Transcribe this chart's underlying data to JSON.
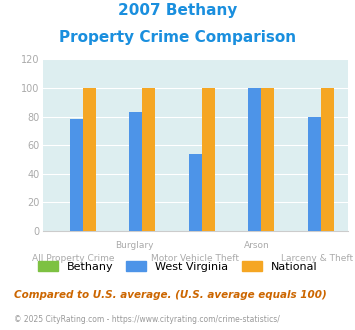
{
  "title_line1": "2007 Bethany",
  "title_line2": "Property Crime Comparison",
  "groups": [
    {
      "label": "All Property Crime",
      "bethany": 0,
      "west_virginia": 78,
      "national": 100
    },
    {
      "label": "Burglary",
      "bethany": 0,
      "west_virginia": 83,
      "national": 100
    },
    {
      "label": "Motor Vehicle Theft",
      "bethany": 0,
      "west_virginia": 54,
      "national": 100
    },
    {
      "label": "Arson",
      "bethany": 0,
      "west_virginia": 100,
      "national": 100
    },
    {
      "label": "Larceny & Theft",
      "bethany": 0,
      "west_virginia": 80,
      "national": 100
    }
  ],
  "bethany_color": "#7dc142",
  "west_virginia_color": "#4d94e8",
  "national_color": "#f5a623",
  "bg_color": "#ddeef0",
  "ylim": [
    0,
    120
  ],
  "yticks": [
    0,
    20,
    40,
    60,
    80,
    100,
    120
  ],
  "footnote": "Compared to U.S. average. (U.S. average equals 100)",
  "copyright": "© 2025 CityRating.com - https://www.cityrating.com/crime-statistics/",
  "title_color": "#1a8fde",
  "footnote_color": "#cc6600",
  "copyright_color": "#999999",
  "axis_label_color": "#aaaaaa",
  "row1_labels": [
    [
      "Burglary",
      1
    ],
    [
      "Arson",
      3
    ]
  ],
  "row2_labels": [
    [
      "All Property Crime",
      0
    ],
    [
      "Motor Vehicle Theft",
      2
    ],
    [
      "Larceny & Theft",
      4
    ]
  ]
}
